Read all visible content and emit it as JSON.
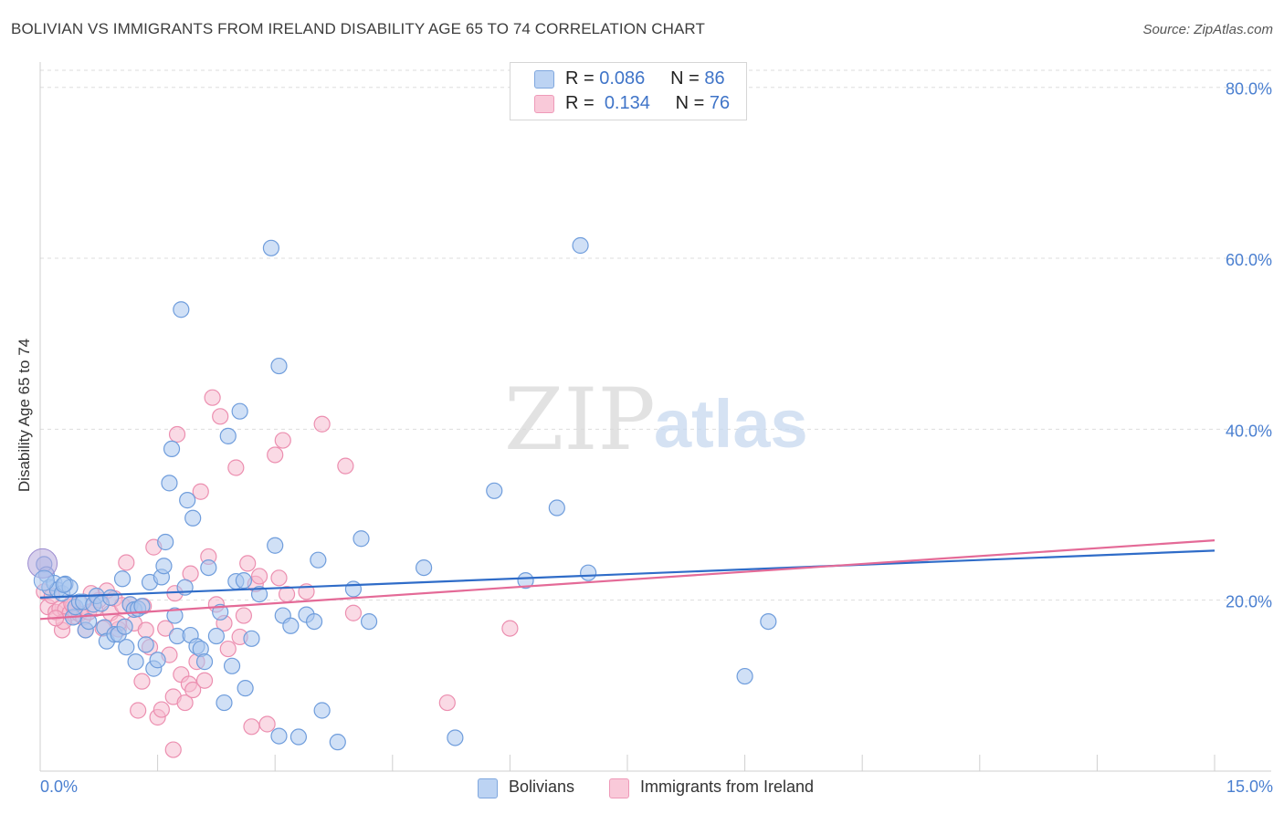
{
  "header": {
    "title": "BOLIVIAN VS IMMIGRANTS FROM IRELAND DISABILITY AGE 65 TO 74 CORRELATION CHART",
    "source": "Source: ZipAtlas.com"
  },
  "watermark": {
    "zip": "ZIP",
    "atlas": "atlas"
  },
  "legend": {
    "rows": [
      {
        "r_label": "R =",
        "r_value": "0.086",
        "n_label": "N =",
        "n_value": "86"
      },
      {
        "r_label": "R =",
        "r_value": "0.134",
        "n_label": "N =",
        "n_value": "76"
      }
    ],
    "bottom": [
      "Bolivians",
      "Immigrants from Ireland"
    ]
  },
  "colors": {
    "bolivians_fill": "#a9c6ee",
    "bolivians_stroke": "#6f9ddc",
    "bolivians_line": "#2f6cc8",
    "ireland_fill": "#f6bcd0",
    "ireland_stroke": "#ec8fb0",
    "ireland_line": "#e46a97",
    "tick_label": "#4a7fd0",
    "grid": "#dddddd"
  },
  "chart_data": {
    "type": "scatter",
    "title": "BOLIVIAN VS IMMIGRANTS FROM IRELAND DISABILITY AGE 65 TO 74 CORRELATION CHART",
    "xlabel": "",
    "ylabel": "Disability Age 65 to 74",
    "xlim": [
      0,
      15
    ],
    "ylim": [
      0,
      82
    ],
    "x_tick_labels": [
      "0.0%",
      "15.0%"
    ],
    "y_ticks": [
      20,
      40,
      60,
      80
    ],
    "y_tick_labels": [
      "20.0%",
      "40.0%",
      "60.0%",
      "80.0%"
    ],
    "grid": true,
    "legend_position": "top-center",
    "series": [
      {
        "name": "Bolivians",
        "r": 0.086,
        "n": 86,
        "trend": [
          [
            0,
            20.3
          ],
          [
            15,
            25.8
          ]
        ],
        "points": [
          [
            0.05,
            24.2
          ],
          [
            0.08,
            23.0
          ],
          [
            0.12,
            21.5
          ],
          [
            0.18,
            22.0
          ],
          [
            0.22,
            21.2
          ],
          [
            0.28,
            20.8
          ],
          [
            0.32,
            21.9
          ],
          [
            0.38,
            21.5
          ],
          [
            0.42,
            18.0
          ],
          [
            0.45,
            19.2
          ],
          [
            0.5,
            19.8
          ],
          [
            0.55,
            19.8
          ],
          [
            0.58,
            16.5
          ],
          [
            0.62,
            17.5
          ],
          [
            0.68,
            19.5
          ],
          [
            0.72,
            20.5
          ],
          [
            0.78,
            19.6
          ],
          [
            0.82,
            16.8
          ],
          [
            0.85,
            15.2
          ],
          [
            0.9,
            20.3
          ],
          [
            0.95,
            16.0
          ],
          [
            1.0,
            16.0
          ],
          [
            1.05,
            22.5
          ],
          [
            1.08,
            16.9
          ],
          [
            1.1,
            14.5
          ],
          [
            1.15,
            19.5
          ],
          [
            1.2,
            18.9
          ],
          [
            1.22,
            12.8
          ],
          [
            1.25,
            19.0
          ],
          [
            1.3,
            19.3
          ],
          [
            1.35,
            14.8
          ],
          [
            1.4,
            22.1
          ],
          [
            1.45,
            12.0
          ],
          [
            1.5,
            13.0
          ],
          [
            1.55,
            22.7
          ],
          [
            1.58,
            24.0
          ],
          [
            1.6,
            26.8
          ],
          [
            1.65,
            33.7
          ],
          [
            1.68,
            37.7
          ],
          [
            1.72,
            18.2
          ],
          [
            1.75,
            15.8
          ],
          [
            1.8,
            54.0
          ],
          [
            1.85,
            21.5
          ],
          [
            1.88,
            31.7
          ],
          [
            1.92,
            15.9
          ],
          [
            1.95,
            29.6
          ],
          [
            2.0,
            14.6
          ],
          [
            2.05,
            14.3
          ],
          [
            2.1,
            12.8
          ],
          [
            2.15,
            23.8
          ],
          [
            2.25,
            15.8
          ],
          [
            2.3,
            18.6
          ],
          [
            2.35,
            8.0
          ],
          [
            2.4,
            39.2
          ],
          [
            2.45,
            12.3
          ],
          [
            2.5,
            22.2
          ],
          [
            2.55,
            42.1
          ],
          [
            2.6,
            22.3
          ],
          [
            2.62,
            9.7
          ],
          [
            2.7,
            15.5
          ],
          [
            2.8,
            20.7
          ],
          [
            2.95,
            61.2
          ],
          [
            3.0,
            26.4
          ],
          [
            3.05,
            4.1
          ],
          [
            3.05,
            47.4
          ],
          [
            3.1,
            18.2
          ],
          [
            3.2,
            17.0
          ],
          [
            3.3,
            4.0
          ],
          [
            3.4,
            18.3
          ],
          [
            3.5,
            17.5
          ],
          [
            3.55,
            24.7
          ],
          [
            3.6,
            7.1
          ],
          [
            3.8,
            3.4
          ],
          [
            4.0,
            21.3
          ],
          [
            4.1,
            27.2
          ],
          [
            4.2,
            17.5
          ],
          [
            4.9,
            23.8
          ],
          [
            5.3,
            3.9
          ],
          [
            5.8,
            32.8
          ],
          [
            6.2,
            22.3
          ],
          [
            6.6,
            30.8
          ],
          [
            6.9,
            61.5
          ],
          [
            7.0,
            23.2
          ],
          [
            9.0,
            11.1
          ],
          [
            9.3,
            17.5
          ],
          [
            0.3,
            21.8
          ]
        ]
      },
      {
        "name": "Immigrants from Ireland",
        "r": 0.134,
        "n": 76,
        "trend": [
          [
            0,
            17.8
          ],
          [
            15,
            27.0
          ]
        ],
        "points": [
          [
            0.05,
            21.0
          ],
          [
            0.1,
            19.2
          ],
          [
            0.15,
            20.5
          ],
          [
            0.2,
            18.6
          ],
          [
            0.25,
            19.0
          ],
          [
            0.28,
            16.5
          ],
          [
            0.32,
            18.9
          ],
          [
            0.38,
            18.5
          ],
          [
            0.42,
            19.3
          ],
          [
            0.45,
            18.1
          ],
          [
            0.5,
            18.4
          ],
          [
            0.55,
            18.0
          ],
          [
            0.58,
            16.5
          ],
          [
            0.62,
            18.6
          ],
          [
            0.7,
            19.0
          ],
          [
            0.75,
            20.0
          ],
          [
            0.8,
            16.7
          ],
          [
            0.85,
            21.1
          ],
          [
            0.9,
            18.5
          ],
          [
            0.95,
            20.2
          ],
          [
            1.0,
            16.6
          ],
          [
            1.05,
            19.4
          ],
          [
            1.1,
            24.4
          ],
          [
            1.15,
            19.5
          ],
          [
            1.2,
            17.3
          ],
          [
            1.25,
            7.1
          ],
          [
            1.3,
            10.5
          ],
          [
            1.32,
            19.3
          ],
          [
            1.35,
            16.5
          ],
          [
            1.4,
            14.5
          ],
          [
            1.45,
            26.2
          ],
          [
            1.5,
            6.3
          ],
          [
            1.55,
            7.2
          ],
          [
            1.6,
            16.7
          ],
          [
            1.65,
            13.6
          ],
          [
            1.7,
            8.7
          ],
          [
            1.72,
            20.8
          ],
          [
            1.75,
            39.4
          ],
          [
            1.8,
            11.3
          ],
          [
            1.85,
            8.0
          ],
          [
            1.9,
            10.2
          ],
          [
            1.92,
            23.1
          ],
          [
            1.95,
            9.5
          ],
          [
            2.0,
            12.8
          ],
          [
            2.05,
            32.7
          ],
          [
            2.1,
            10.6
          ],
          [
            2.15,
            25.1
          ],
          [
            2.2,
            43.7
          ],
          [
            2.25,
            19.5
          ],
          [
            2.3,
            41.5
          ],
          [
            2.35,
            17.3
          ],
          [
            2.4,
            14.3
          ],
          [
            2.5,
            35.5
          ],
          [
            2.55,
            15.7
          ],
          [
            2.6,
            18.2
          ],
          [
            2.65,
            24.3
          ],
          [
            2.7,
            5.2
          ],
          [
            2.75,
            21.9
          ],
          [
            2.8,
            22.8
          ],
          [
            2.9,
            5.5
          ],
          [
            3.0,
            37.0
          ],
          [
            3.05,
            22.6
          ],
          [
            3.1,
            38.7
          ],
          [
            3.15,
            20.7
          ],
          [
            3.4,
            21.0
          ],
          [
            3.6,
            40.6
          ],
          [
            3.9,
            35.7
          ],
          [
            4.0,
            18.5
          ],
          [
            5.2,
            8.0
          ],
          [
            6.0,
            16.7
          ],
          [
            0.3,
            17.5
          ],
          [
            0.4,
            19.6
          ],
          [
            0.65,
            20.8
          ],
          [
            1.0,
            17.3
          ],
          [
            1.7,
            2.5
          ],
          [
            0.2,
            17.9
          ]
        ]
      }
    ]
  }
}
